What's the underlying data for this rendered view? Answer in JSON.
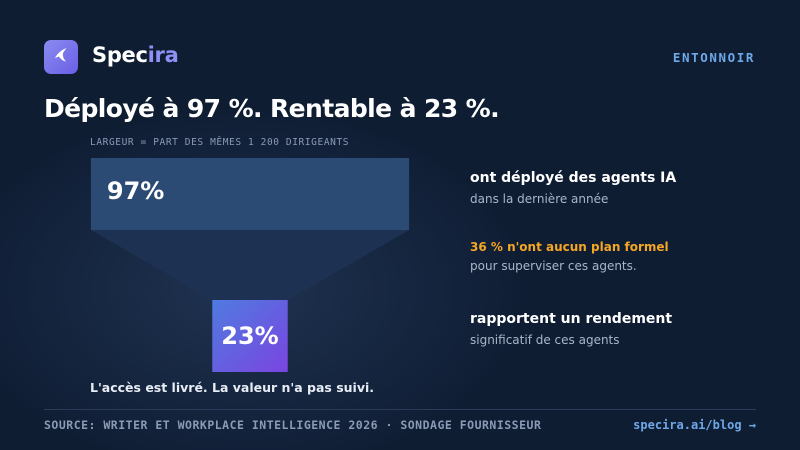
{
  "brand": {
    "name_part1": "Spec",
    "name_part2": "ira",
    "logo_icon": "bird-icon"
  },
  "tag": "ENTONNOIR",
  "headline": "Déployé à 97 %. Rentable à 23 %.",
  "colors": {
    "background": "#0f1d33",
    "bar_top": "#2b4a74",
    "funnel_shape": "#1d3252",
    "bar_bottom_start": "#4f7be0",
    "bar_bottom_end": "#7a45e0",
    "accent_warning": "#f5a623",
    "accent_link": "#6ea8e8"
  },
  "chart_data": {
    "type": "bar",
    "orientation": "horizontal-funnel",
    "axis_note": "LARGEUR = PART DES MÊMES 1 200 DIRIGEANTS",
    "stages": [
      {
        "value": 97,
        "label": "97%",
        "title": "ont déployé des agents IA",
        "detail": "dans la dernière année"
      },
      {
        "value": 23,
        "label": "23%",
        "title": "rapportent un rendement",
        "detail": "significatif de ces agents"
      }
    ],
    "annotation": {
      "highlight": "36 % n'ont aucun plan formel",
      "detail": "pour superviser ces agents."
    },
    "caption": "L'accès est livré. La valeur n'a pas suivi."
  },
  "footer": {
    "source": "SOURCE: WRITER ET WORKPLACE INTELLIGENCE 2026 · SONDAGE FOURNISSEUR",
    "link": "specira.ai/blog →"
  }
}
